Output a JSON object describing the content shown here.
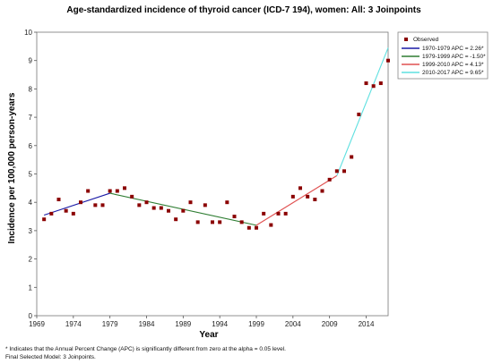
{
  "chart_data": {
    "type": "scatter",
    "title": "Age-standardized incidence of thyroid cancer (ICD-7 194), women: All: 3 Joinpoints",
    "xlabel": "Year",
    "ylabel": "Incidence per 100,000 person-years",
    "xlim": [
      1969,
      2017
    ],
    "ylim": [
      0,
      10
    ],
    "x_ticks": [
      "1969",
      "1974",
      "1979",
      "1984",
      "1989",
      "1994",
      "1999",
      "2004",
      "2009",
      "2014"
    ],
    "y_ticks": [
      "0",
      "1",
      "2",
      "3",
      "4",
      "5",
      "6",
      "7",
      "8",
      "9",
      "10"
    ],
    "grid": false,
    "legend_position": "top-right",
    "observed": {
      "name": "Observed",
      "color": "#8b0000",
      "x": [
        1970,
        1971,
        1972,
        1973,
        1974,
        1975,
        1976,
        1977,
        1978,
        1979,
        1980,
        1981,
        1982,
        1983,
        1984,
        1985,
        1986,
        1987,
        1988,
        1989,
        1990,
        1991,
        1992,
        1993,
        1994,
        1995,
        1996,
        1997,
        1998,
        1999,
        2000,
        2001,
        2002,
        2003,
        2004,
        2005,
        2006,
        2007,
        2008,
        2009,
        2010,
        2011,
        2012,
        2013,
        2014,
        2015,
        2016,
        2017
      ],
      "y": [
        3.4,
        3.6,
        4.1,
        3.7,
        3.6,
        4.0,
        4.4,
        3.9,
        3.9,
        4.4,
        4.4,
        4.5,
        4.2,
        3.9,
        4.0,
        3.8,
        3.8,
        3.7,
        3.4,
        3.7,
        4.0,
        3.3,
        3.9,
        3.3,
        3.3,
        4.0,
        3.5,
        3.3,
        3.1,
        3.1,
        3.6,
        3.2,
        3.6,
        3.6,
        4.2,
        4.5,
        4.2,
        4.1,
        4.4,
        4.8,
        5.1,
        5.1,
        5.6,
        7.1,
        8.2,
        8.1,
        8.2,
        9.0
      ]
    },
    "series": [
      {
        "name": "1970-1979 APC =  2.26*",
        "color": "#1a1aa6",
        "x": [
          1970,
          1979
        ],
        "y": [
          3.55,
          4.32
        ]
      },
      {
        "name": "1979-1999 APC = -1.50*",
        "color": "#2e7d32",
        "x": [
          1979,
          1999
        ],
        "y": [
          4.32,
          3.19
        ]
      },
      {
        "name": "1999-2010 APC =  4.13*",
        "color": "#e05050",
        "x": [
          1999,
          2010
        ],
        "y": [
          3.19,
          4.94
        ]
      },
      {
        "name": "2010-2017 APC =  9.65*",
        "color": "#5ee0e0",
        "x": [
          2010,
          2017
        ],
        "y": [
          4.94,
          9.45
        ]
      }
    ]
  },
  "footnotes": [
    "* Indicates that the Annual Percent Change (APC) is significantly different from zero at the alpha = 0.05 level.",
    "Final Selected Model: 3 Joinpoints."
  ]
}
